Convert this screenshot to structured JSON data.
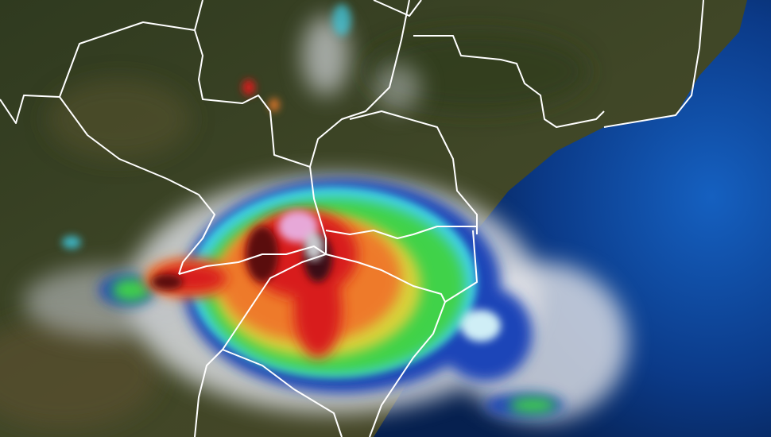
{
  "image": {
    "kind": "satellite-weather-composite",
    "colors": {
      "land": "#3b4326",
      "ocean": "#0d3b86",
      "cloud": "#e6e8ec",
      "rain_blue": "#1c44b8",
      "rain_cyan": "#3fd0e8",
      "rain_green": "#3fd24a",
      "rain_yellow": "#d8d23a",
      "rain_orange": "#ee7a2c",
      "rain_red": "#d81e1e",
      "rain_darkred": "#5a0a10",
      "rain_pink": "#e7a8d8",
      "border": "#ffffff"
    }
  }
}
